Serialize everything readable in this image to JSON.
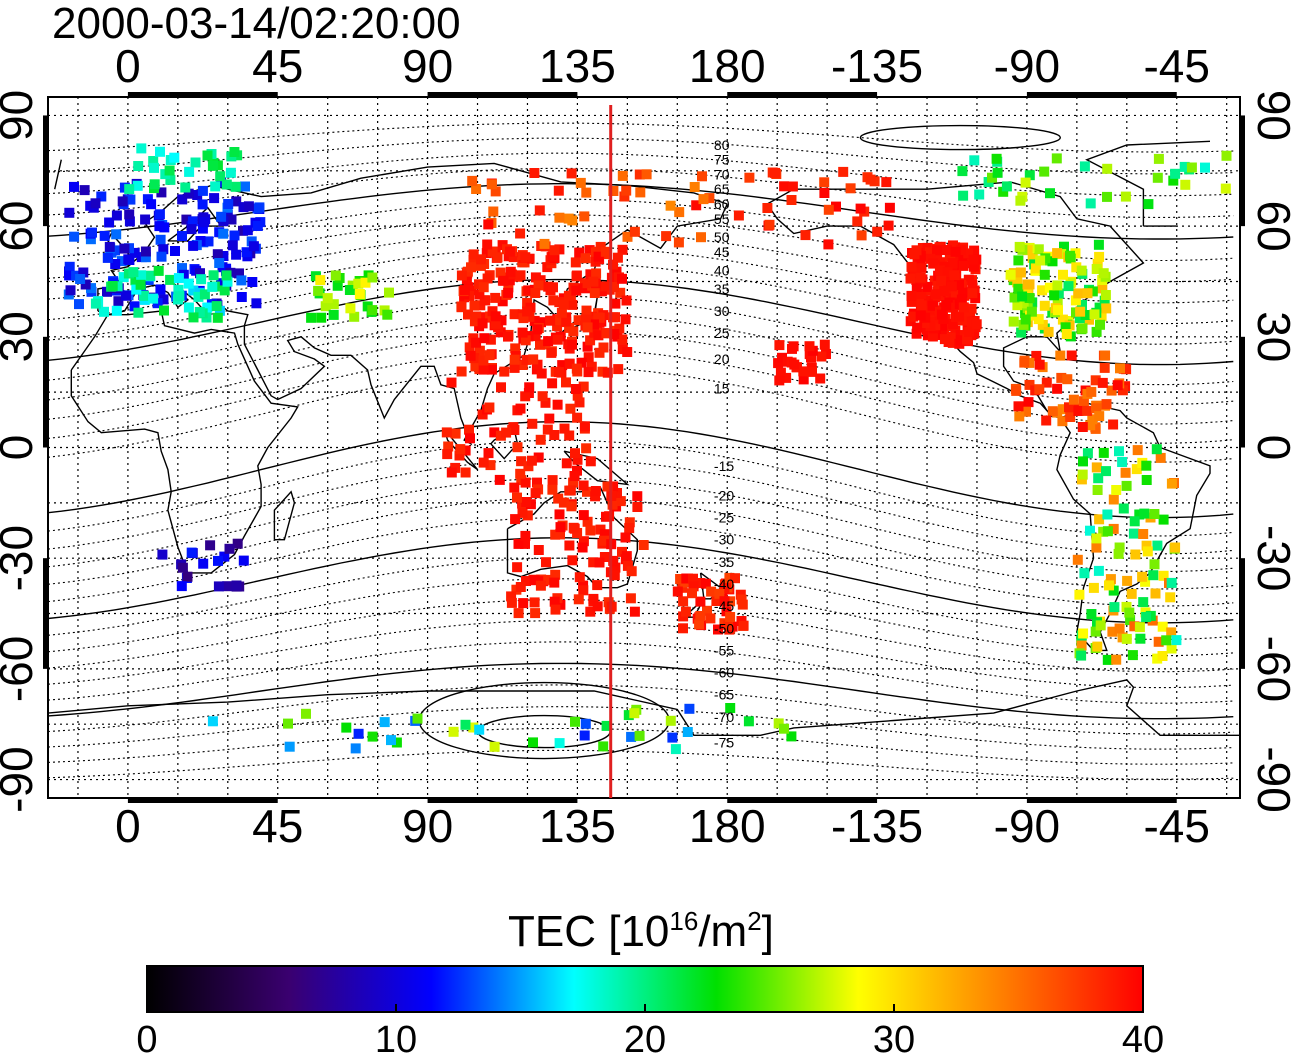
{
  "title": "2000-03-14/02:20:00",
  "map": {
    "lon_min": -24,
    "lon_max": 334,
    "lat_min": -95,
    "lat_max": 95,
    "top_ticks": [
      "0",
      "45",
      "90",
      "135",
      "180",
      "-135",
      "-90",
      "-45"
    ],
    "bottom_ticks": [
      "0",
      "45",
      "90",
      "135",
      "180",
      "-135",
      "-90",
      "-45"
    ],
    "left_ticks": [
      "90",
      "60",
      "30",
      "0",
      "-30",
      "-60",
      "-90"
    ],
    "right_ticks": [
      "90",
      "60",
      "30",
      "0",
      "-30",
      "-60",
      "-90"
    ],
    "marker_lon": 145,
    "marker_color": "#e02020"
  },
  "contour_labels": [
    "80",
    "75",
    "70",
    "65",
    "60",
    "55",
    "50",
    "45",
    "40",
    "35",
    "30",
    "25",
    "20",
    "15",
    "-15",
    "-20",
    "-25",
    "-30",
    "-35",
    "-40",
    "-45",
    "-50",
    "-55",
    "-60",
    "-65",
    "-70",
    "-75"
  ],
  "colorbar": {
    "title_prefix": "TEC  [10",
    "title_exp": "16",
    "title_mid": "/m",
    "title_exp2": "2",
    "title_suffix": "]",
    "ticks": [
      "0",
      "10",
      "20",
      "30",
      "40"
    ],
    "vmin": 0,
    "vmax": 40,
    "colors": [
      "#000000",
      "#3a0070",
      "#0000ff",
      "#00ffff",
      "#00e000",
      "#ffff00",
      "#ff8000",
      "#ff0000"
    ]
  },
  "tec_clusters": [
    {
      "name": "europe",
      "lon": [
        -18,
        40
      ],
      "lat": [
        38,
        72
      ],
      "n": 160,
      "tec": [
        8,
        14
      ]
    },
    {
      "name": "europe-south",
      "lon": [
        -10,
        30
      ],
      "lat": [
        35,
        48
      ],
      "n": 50,
      "tec": [
        16,
        22
      ]
    },
    {
      "name": "europe-north",
      "lon": [
        0,
        35
      ],
      "lat": [
        70,
        82
      ],
      "n": 30,
      "tec": [
        17,
        22
      ]
    },
    {
      "name": "central-asia",
      "lon": [
        55,
        80
      ],
      "lat": [
        35,
        48
      ],
      "n": 30,
      "tec": [
        22,
        30
      ]
    },
    {
      "name": "east-asia",
      "lon": [
        100,
        150
      ],
      "lat": [
        20,
        55
      ],
      "n": 260,
      "tec": [
        38,
        40
      ]
    },
    {
      "name": "siberia",
      "lon": [
        100,
        175
      ],
      "lat": [
        55,
        75
      ],
      "n": 40,
      "tec": [
        34,
        40
      ]
    },
    {
      "name": "southeast-asia",
      "lon": [
        95,
        140
      ],
      "lat": [
        -10,
        18
      ],
      "n": 70,
      "tec": [
        38,
        40
      ]
    },
    {
      "name": "australia",
      "lon": [
        115,
        155
      ],
      "lat": [
        -45,
        -10
      ],
      "n": 110,
      "tec": [
        38,
        40
      ]
    },
    {
      "name": "new-zealand",
      "lon": [
        165,
        185
      ],
      "lat": [
        -50,
        -35
      ],
      "n": 50,
      "tec": [
        37,
        40
      ]
    },
    {
      "name": "pacific-north",
      "lon": [
        180,
        230
      ],
      "lat": [
        55,
        75
      ],
      "n": 30,
      "tec": [
        37,
        40
      ]
    },
    {
      "name": "north-america-west",
      "lon": [
        235,
        255
      ],
      "lat": [
        28,
        55
      ],
      "n": 200,
      "tec": [
        39,
        40
      ]
    },
    {
      "name": "north-america-east",
      "lon": [
        265,
        295
      ],
      "lat": [
        30,
        55
      ],
      "n": 110,
      "tec": [
        20,
        32
      ]
    },
    {
      "name": "caribbean",
      "lon": [
        265,
        300
      ],
      "lat": [
        5,
        25
      ],
      "n": 60,
      "tec": [
        34,
        40
      ]
    },
    {
      "name": "south-america",
      "lon": [
        285,
        315
      ],
      "lat": [
        -58,
        0
      ],
      "n": 110,
      "tec": [
        18,
        36
      ]
    },
    {
      "name": "antarctica",
      "lon": [
        25,
        205
      ],
      "lat": [
        -82,
        -70
      ],
      "n": 40,
      "tec": [
        12,
        28
      ]
    },
    {
      "name": "south-africa",
      "lon": [
        10,
        35
      ],
      "lat": [
        -38,
        -25
      ],
      "n": 20,
      "tec": [
        6,
        12
      ]
    },
    {
      "name": "arctic-america",
      "lon": [
        250,
        330
      ],
      "lat": [
        65,
        80
      ],
      "n": 35,
      "tec": [
        18,
        28
      ]
    },
    {
      "name": "hawaii",
      "lon": [
        195,
        210
      ],
      "lat": [
        18,
        28
      ],
      "n": 25,
      "tec": [
        39,
        40
      ]
    }
  ]
}
